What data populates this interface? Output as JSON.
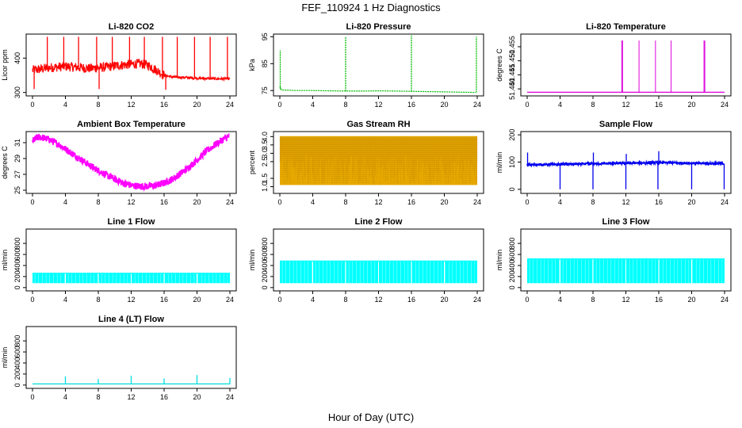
{
  "figure": {
    "title": "FEF_110924  1 Hz Diagnostics",
    "xlabel": "Hour of Day (UTC)"
  },
  "chart_data": [
    {
      "type": "line",
      "title": "Li-820 CO2",
      "ylabel": "Licor ppm",
      "color": "#ff0000",
      "xlim": [
        0,
        24
      ],
      "ylim": [
        290,
        470
      ],
      "xticks": [
        "0",
        "4",
        "8",
        "12",
        "16",
        "20",
        "24"
      ],
      "yticks": [
        "300",
        "400"
      ],
      "series": [
        {
          "x": [
            0,
            1,
            2,
            3,
            4,
            5,
            6,
            7,
            8,
            9,
            10,
            11,
            12,
            13,
            14,
            15,
            16,
            17,
            18,
            19,
            20,
            21,
            22,
            23,
            24
          ],
          "values": [
            365,
            368,
            372,
            374,
            376,
            374,
            372,
            370,
            372,
            374,
            378,
            380,
            382,
            384,
            380,
            366,
            350,
            345,
            344,
            343,
            342,
            341,
            340,
            340,
            340
          ]
        }
      ],
      "spikes": [
        {
          "x": 0.2,
          "y0": 365,
          "y1": 310
        },
        {
          "x": 1.8,
          "y0": 372,
          "y1": 462
        },
        {
          "x": 3.8,
          "y0": 376,
          "y1": 462
        },
        {
          "x": 5.6,
          "y0": 373,
          "y1": 462
        },
        {
          "x": 7.8,
          "y0": 371,
          "y1": 462
        },
        {
          "x": 8.1,
          "y0": 371,
          "y1": 310
        },
        {
          "x": 9.7,
          "y0": 375,
          "y1": 462
        },
        {
          "x": 11.8,
          "y0": 382,
          "y1": 462
        },
        {
          "x": 13.6,
          "y0": 382,
          "y1": 462
        },
        {
          "x": 15.8,
          "y0": 358,
          "y1": 462
        },
        {
          "x": 16.2,
          "y0": 350,
          "y1": 308
        },
        {
          "x": 17.6,
          "y0": 344,
          "y1": 462
        },
        {
          "x": 19.7,
          "y0": 343,
          "y1": 462
        },
        {
          "x": 21.6,
          "y0": 341,
          "y1": 462
        },
        {
          "x": 23.7,
          "y0": 340,
          "y1": 462
        }
      ]
    },
    {
      "type": "line",
      "title": "Li-820 Pressure",
      "ylabel": "kPa",
      "color": "#00bb00",
      "xlim": [
        0,
        24
      ],
      "ylim": [
        73,
        96
      ],
      "xticks": [
        "0",
        "4",
        "8",
        "12",
        "16",
        "20",
        "24"
      ],
      "yticks": [
        "75",
        "85",
        "95"
      ],
      "series": [
        {
          "x": [
            0,
            0.2,
            2,
            4,
            6,
            8,
            10,
            12,
            14,
            16,
            18,
            20,
            22,
            23.8
          ],
          "values": [
            76.5,
            75.2,
            75.0,
            75.0,
            74.9,
            74.8,
            74.8,
            74.9,
            74.8,
            74.7,
            74.6,
            74.5,
            74.4,
            74.3
          ]
        }
      ],
      "spikes": [
        {
          "x": 0.05,
          "y0": 75.5,
          "y1": 90
        },
        {
          "x": 8.0,
          "y0": 74.8,
          "y1": 95
        },
        {
          "x": 16.0,
          "y0": 74.7,
          "y1": 95.5
        },
        {
          "x": 23.9,
          "y0": 74.3,
          "y1": 95
        }
      ]
    },
    {
      "type": "line",
      "title": "Li-820 Temperature",
      "ylabel": "degrees C",
      "color": "#dd00dd",
      "xlim": [
        0,
        24
      ],
      "ylim": [
        51.4375,
        51.4595
      ],
      "xticks": [
        "0",
        "4",
        "8",
        "12",
        "16",
        "20",
        "24"
      ],
      "yticks": [
        "51.440",
        "51.445",
        "51.450",
        "51.455"
      ],
      "series": [
        {
          "x": [
            0,
            24
          ],
          "values": [
            51.4388,
            51.4388
          ]
        }
      ],
      "spikes": [
        {
          "x": 11.5,
          "y0": 51.4388,
          "y1": 51.4572
        },
        {
          "x": 11.6,
          "y0": 51.4388,
          "y1": 51.4572
        },
        {
          "x": 13.6,
          "y0": 51.4388,
          "y1": 51.4572
        },
        {
          "x": 15.6,
          "y0": 51.4388,
          "y1": 51.4572
        },
        {
          "x": 17.5,
          "y0": 51.4388,
          "y1": 51.4572
        },
        {
          "x": 21.5,
          "y0": 51.4388,
          "y1": 51.4572
        },
        {
          "x": 21.6,
          "y0": 51.4388,
          "y1": 51.4572
        }
      ]
    },
    {
      "type": "line",
      "title": "Ambient Box Temperature",
      "ylabel": "degrees C",
      "color": "#ff00ff",
      "xlim": [
        0,
        24
      ],
      "ylim": [
        24.6,
        32.4
      ],
      "xticks": [
        "0",
        "4",
        "8",
        "12",
        "16",
        "20",
        "24"
      ],
      "yticks": [
        "25",
        "27",
        "29",
        "31"
      ],
      "noise": 0.45,
      "series": [
        {
          "x": [
            0,
            0.5,
            1,
            2,
            3,
            4,
            5,
            6,
            7,
            8,
            9,
            10,
            11,
            12,
            13,
            14,
            15,
            16,
            17,
            18,
            19,
            20,
            21,
            22,
            23,
            23.9
          ],
          "values": [
            31.2,
            31.6,
            31.7,
            31.4,
            30.9,
            30.2,
            29.5,
            28.8,
            28.1,
            27.5,
            26.9,
            26.4,
            25.9,
            25.6,
            25.5,
            25.5,
            25.6,
            25.9,
            26.4,
            27.1,
            27.9,
            28.8,
            29.8,
            30.6,
            31.3,
            31.8
          ]
        }
      ]
    },
    {
      "type": "area",
      "title": "Gas Stream RH",
      "ylabel": "percent",
      "color": "#e6a800",
      "xlim": [
        0,
        24
      ],
      "ylim": [
        0.6,
        4.3
      ],
      "xticks": [
        "0",
        "4",
        "8",
        "12",
        "16",
        "20",
        "24"
      ],
      "yticks": [
        "1.0",
        "1.5",
        "2.5",
        "3.0",
        "3.5",
        "4.0"
      ],
      "band": {
        "low": 1.1,
        "high": 4.0
      },
      "series": [
        {
          "x": [
            0,
            24
          ],
          "values": [
            4.0,
            4.0
          ]
        }
      ]
    },
    {
      "type": "line",
      "title": "Sample Flow",
      "ylabel": "ml/min",
      "color": "#0000ee",
      "xlim": [
        0,
        24
      ],
      "ylim": [
        -15,
        212
      ],
      "xticks": [
        "0",
        "4",
        "8",
        "12",
        "16",
        "20",
        "24"
      ],
      "yticks": [
        "0",
        "100",
        "200"
      ],
      "noise": 4,
      "series": [
        {
          "x": [
            0,
            4,
            8,
            12,
            16,
            20,
            24
          ],
          "values": [
            90,
            92,
            94,
            96,
            98,
            96,
            94
          ]
        }
      ],
      "spikes": [
        {
          "x": 0.05,
          "y0": 90,
          "y1": 135
        },
        {
          "x": 4.0,
          "y0": 92,
          "y1": 0
        },
        {
          "x": 8.0,
          "y0": 94,
          "y1": 0
        },
        {
          "x": 8.05,
          "y0": 94,
          "y1": 135
        },
        {
          "x": 12.0,
          "y0": 96,
          "y1": 0
        },
        {
          "x": 12.05,
          "y0": 96,
          "y1": 130
        },
        {
          "x": 15.9,
          "y0": 98,
          "y1": 0
        },
        {
          "x": 16.0,
          "y0": 98,
          "y1": 140
        },
        {
          "x": 20.0,
          "y0": 96,
          "y1": 0
        },
        {
          "x": 23.95,
          "y0": 94,
          "y1": 0
        }
      ]
    },
    {
      "type": "area",
      "title": "Line 1 Flow",
      "ylabel": "ml/min",
      "color": "#00ffff",
      "xlim": [
        0,
        24
      ],
      "ylim": [
        -60,
        1060
      ],
      "xticks": [
        "0",
        "4",
        "8",
        "12",
        "16",
        "20",
        "24"
      ],
      "yticks": [
        "0",
        "200",
        "400",
        "600",
        "800"
      ],
      "band": {
        "low": 80,
        "high": 260
      },
      "gaps": [
        4.0,
        8.0,
        12.0,
        16.0,
        20.0
      ],
      "series": [
        {
          "x": [
            0,
            24
          ],
          "values": [
            260,
            260
          ]
        }
      ]
    },
    {
      "type": "area",
      "title": "Line 2 Flow",
      "ylabel": "ml/min",
      "color": "#00ffff",
      "xlim": [
        0,
        24
      ],
      "ylim": [
        -60,
        1060
      ],
      "xticks": [
        "0",
        "4",
        "8",
        "12",
        "16",
        "20",
        "24"
      ],
      "yticks": [
        "0",
        "200",
        "400",
        "600",
        "800"
      ],
      "band": {
        "low": 80,
        "high": 480
      },
      "gaps": [
        4.0,
        8.0,
        12.0,
        16.0,
        20.0
      ],
      "series": [
        {
          "x": [
            0,
            24
          ],
          "values": [
            480,
            480
          ]
        }
      ]
    },
    {
      "type": "area",
      "title": "Line 3 Flow",
      "ylabel": "ml/min",
      "color": "#00ffff",
      "xlim": [
        0,
        24
      ],
      "ylim": [
        -60,
        1060
      ],
      "xticks": [
        "0",
        "4",
        "8",
        "12",
        "16",
        "20",
        "24"
      ],
      "yticks": [
        "0",
        "200",
        "400",
        "600",
        "800"
      ],
      "band": {
        "low": 80,
        "high": 520
      },
      "gaps": [
        4.0,
        8.0,
        12.0,
        16.0,
        20.0
      ],
      "series": [
        {
          "x": [
            0,
            24
          ],
          "values": [
            520,
            520
          ]
        }
      ]
    },
    {
      "type": "line",
      "title": "Line 4 (LT) Flow",
      "ylabel": "ml/min",
      "color": "#00dddd",
      "xlim": [
        0,
        24
      ],
      "ylim": [
        -60,
        1060
      ],
      "xticks": [
        "0",
        "4",
        "8",
        "12",
        "16",
        "20",
        "24"
      ],
      "yticks": [
        "0",
        "200",
        "400",
        "600",
        "800"
      ],
      "series": [
        {
          "x": [
            0,
            24
          ],
          "values": [
            20,
            20
          ]
        }
      ],
      "spikes": [
        {
          "x": 4.0,
          "y0": 20,
          "y1": 160
        },
        {
          "x": 8.0,
          "y0": 20,
          "y1": 110
        },
        {
          "x": 12.0,
          "y0": 20,
          "y1": 170
        },
        {
          "x": 16.0,
          "y0": 20,
          "y1": 120
        },
        {
          "x": 20.0,
          "y0": 20,
          "y1": 180
        },
        {
          "x": 24.0,
          "y0": 20,
          "y1": 130
        }
      ]
    }
  ]
}
